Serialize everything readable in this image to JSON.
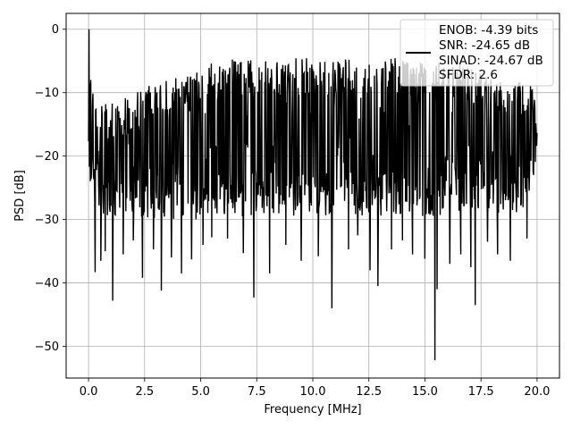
{
  "chart_data": {
    "type": "line",
    "title": "",
    "xlabel": "Frequency [MHz]",
    "ylabel": "PSD [dB]",
    "xlim": [
      -1.0,
      21.0
    ],
    "ylim": [
      -55,
      2.5
    ],
    "grid": true,
    "x_ticks": [
      0.0,
      2.5,
      5.0,
      7.5,
      10.0,
      12.5,
      15.0,
      17.5,
      20.0
    ],
    "x_tick_labels": [
      "0.0",
      "2.5",
      "5.0",
      "7.5",
      "10.0",
      "12.5",
      "15.0",
      "17.5",
      "20.0"
    ],
    "y_ticks": [
      0,
      -10,
      -20,
      -30,
      -40,
      -50
    ],
    "y_tick_labels": [
      "0",
      "−10",
      "−20",
      "−30",
      "−40",
      "−50"
    ],
    "legend_position": "top-right",
    "legend_lines": [
      "ENOB: -4.39 bits",
      "SNR: -24.65 dB",
      "SINAD: -24.67 dB",
      "SFDR: 2.6"
    ],
    "series": [
      {
        "color": "#000000",
        "x_range": [
          0.0,
          20.0
        ],
        "sample_count": 1024,
        "band_profile_x": [
          0.0,
          0.3,
          0.6,
          1.0,
          1.5,
          2.0,
          2.5,
          3.0,
          3.5,
          4.0,
          4.5,
          5.0,
          5.5,
          6.0,
          6.5,
          7.0,
          7.5,
          8.0,
          8.5,
          9.0,
          9.5,
          10.0,
          10.5,
          11.0,
          11.5,
          12.0,
          12.5,
          13.0,
          13.5,
          14.0,
          14.5,
          15.0,
          15.5,
          16.0,
          16.5,
          17.0,
          17.5,
          18.0,
          18.5,
          19.0,
          19.5,
          20.0
        ],
        "band_upper_db": [
          -5,
          -12,
          -11,
          -11.5,
          -11,
          -10.5,
          -9,
          -8.5,
          -8,
          -7.5,
          -7,
          -5.5,
          -5,
          -5,
          -4.5,
          -4.5,
          -4.5,
          -5,
          -4.5,
          -4.5,
          -4.5,
          -4.5,
          -4.5,
          -4.5,
          -4.5,
          -5,
          -4.5,
          -4.5,
          -4.5,
          -4.5,
          -5,
          -4.5,
          -4.5,
          -5,
          -5,
          -5.5,
          -6.5,
          -7,
          -7.5,
          -8,
          -8.5,
          -9
        ],
        "band_lower_db": [
          -24,
          -29,
          -29,
          -30,
          -30,
          -30,
          -30,
          -30,
          -30,
          -30,
          -30,
          -30,
          -29.5,
          -29.5,
          -29.5,
          -29.5,
          -29.5,
          -29.5,
          -29.5,
          -29.5,
          -29.5,
          -29.5,
          -29.5,
          -29.5,
          -29.5,
          -29.5,
          -29.5,
          -29.5,
          -29.5,
          -29.5,
          -29.5,
          -29.5,
          -29.5,
          -29.5,
          -29.5,
          -29.5,
          -29.5,
          -29.5,
          -29,
          -29,
          -28,
          -21
        ],
        "peaks": [
          {
            "x": 0.02,
            "y": 0.0
          },
          {
            "x": 0.1,
            "y": -8.0
          }
        ],
        "dips": [
          {
            "x": 0.3,
            "y": -38.3
          },
          {
            "x": 0.55,
            "y": -36.5
          },
          {
            "x": 0.75,
            "y": -35.0
          },
          {
            "x": 1.08,
            "y": -42.8
          },
          {
            "x": 1.55,
            "y": -35.5
          },
          {
            "x": 2.0,
            "y": -33.3
          },
          {
            "x": 2.4,
            "y": -39.2
          },
          {
            "x": 2.9,
            "y": -34.7
          },
          {
            "x": 3.25,
            "y": -41.2
          },
          {
            "x": 3.7,
            "y": -36.0
          },
          {
            "x": 4.15,
            "y": -38.5
          },
          {
            "x": 4.6,
            "y": -36.3
          },
          {
            "x": 5.1,
            "y": -34.0
          },
          {
            "x": 5.5,
            "y": -32.8
          },
          {
            "x": 6.2,
            "y": -33.0
          },
          {
            "x": 6.9,
            "y": -35.3
          },
          {
            "x": 7.38,
            "y": -42.3
          },
          {
            "x": 8.08,
            "y": -38.5
          },
          {
            "x": 8.8,
            "y": -34.0
          },
          {
            "x": 9.48,
            "y": -36.5
          },
          {
            "x": 10.25,
            "y": -35.8
          },
          {
            "x": 10.85,
            "y": -44.0
          },
          {
            "x": 11.6,
            "y": -34.7
          },
          {
            "x": 12.0,
            "y": -32.5
          },
          {
            "x": 12.55,
            "y": -38.0
          },
          {
            "x": 12.9,
            "y": -40.5
          },
          {
            "x": 13.5,
            "y": -34.7
          },
          {
            "x": 14.0,
            "y": -33.3
          },
          {
            "x": 14.45,
            "y": -35.5
          },
          {
            "x": 15.0,
            "y": -36.2
          },
          {
            "x": 15.45,
            "y": -52.2
          },
          {
            "x": 15.55,
            "y": -41.0
          },
          {
            "x": 16.1,
            "y": -37.0
          },
          {
            "x": 16.6,
            "y": -35.5
          },
          {
            "x": 17.05,
            "y": -37.5
          },
          {
            "x": 17.25,
            "y": -43.5
          },
          {
            "x": 17.8,
            "y": -33.5
          },
          {
            "x": 18.25,
            "y": -35.5
          },
          {
            "x": 18.8,
            "y": -36.5
          },
          {
            "x": 19.55,
            "y": -33.0
          }
        ]
      }
    ]
  }
}
